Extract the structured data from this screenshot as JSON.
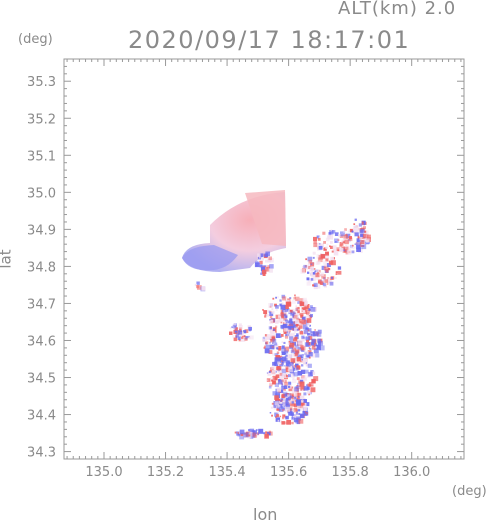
{
  "header": {
    "altitude_label": "ALT(km) 2.0",
    "timestamp": "2020/09/17 18:17:01"
  },
  "axes": {
    "x_label": "lon",
    "y_label": "lat",
    "x_unit": "(deg)",
    "y_unit": "(deg)",
    "x_ticks": [
      "135.0",
      "135.2",
      "135.4",
      "135.6",
      "135.8",
      "136.0"
    ],
    "y_ticks": [
      "34.3",
      "34.4",
      "34.5",
      "34.6",
      "34.7",
      "34.8",
      "34.9",
      "35.0",
      "35.1",
      "35.2",
      "35.3"
    ]
  },
  "map": {
    "xlim": [
      134.87,
      136.17
    ],
    "ylim": [
      34.28,
      35.36
    ],
    "colors": {
      "positive": "#f06060",
      "negative": "#6a6af0",
      "neutral": "#f4e0f0"
    }
  }
}
